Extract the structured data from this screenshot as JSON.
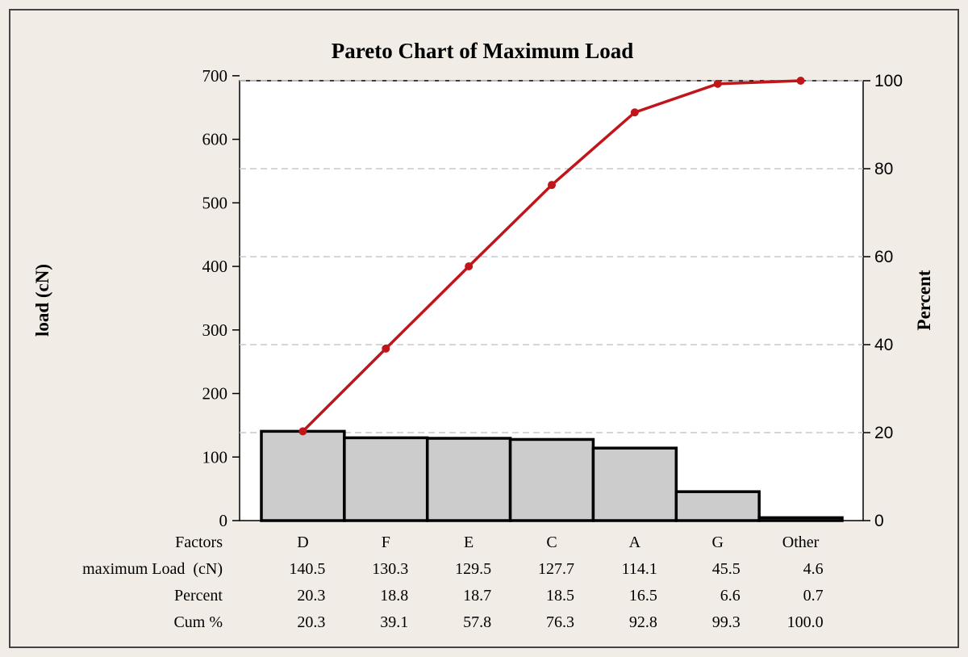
{
  "chart_data": {
    "type": "bar",
    "title": "Pareto Chart of Maximum Load",
    "ylabel": "load (cN)",
    "y2label": "Percent",
    "categories": [
      "D",
      "F",
      "E",
      "C",
      "A",
      "G",
      "Other"
    ],
    "values": [
      140.5,
      130.3,
      129.5,
      127.7,
      114.1,
      45.5,
      4.6
    ],
    "cum_percent": [
      20.3,
      39.1,
      57.8,
      76.3,
      92.8,
      99.3,
      100.0
    ],
    "ylim": [
      0,
      692.2
    ],
    "y_ticks": [
      0,
      100,
      200,
      300,
      400,
      500,
      600,
      700
    ],
    "y2lim": [
      0,
      100
    ],
    "y2_ticks": [
      0,
      20,
      40,
      60,
      80,
      100
    ],
    "grid": true,
    "bar_color": "#cccccc",
    "line_color": "#c0161b",
    "table": {
      "row_labels": [
        "Factors",
        "maximum Load  (cN)",
        "Percent",
        "Cum %"
      ],
      "rows": [
        [
          "D",
          "F",
          "E",
          "C",
          "A",
          "G",
          "Other"
        ],
        [
          "140.5",
          "130.3",
          "129.5",
          "127.7",
          "114.1",
          "45.5",
          "4.6"
        ],
        [
          "20.3",
          "18.8",
          "18.7",
          "18.5",
          "16.5",
          "6.6",
          "0.7"
        ],
        [
          "20.3",
          "39.1",
          "57.8",
          "76.3",
          "92.8",
          "99.3",
          "100.0"
        ]
      ]
    }
  }
}
